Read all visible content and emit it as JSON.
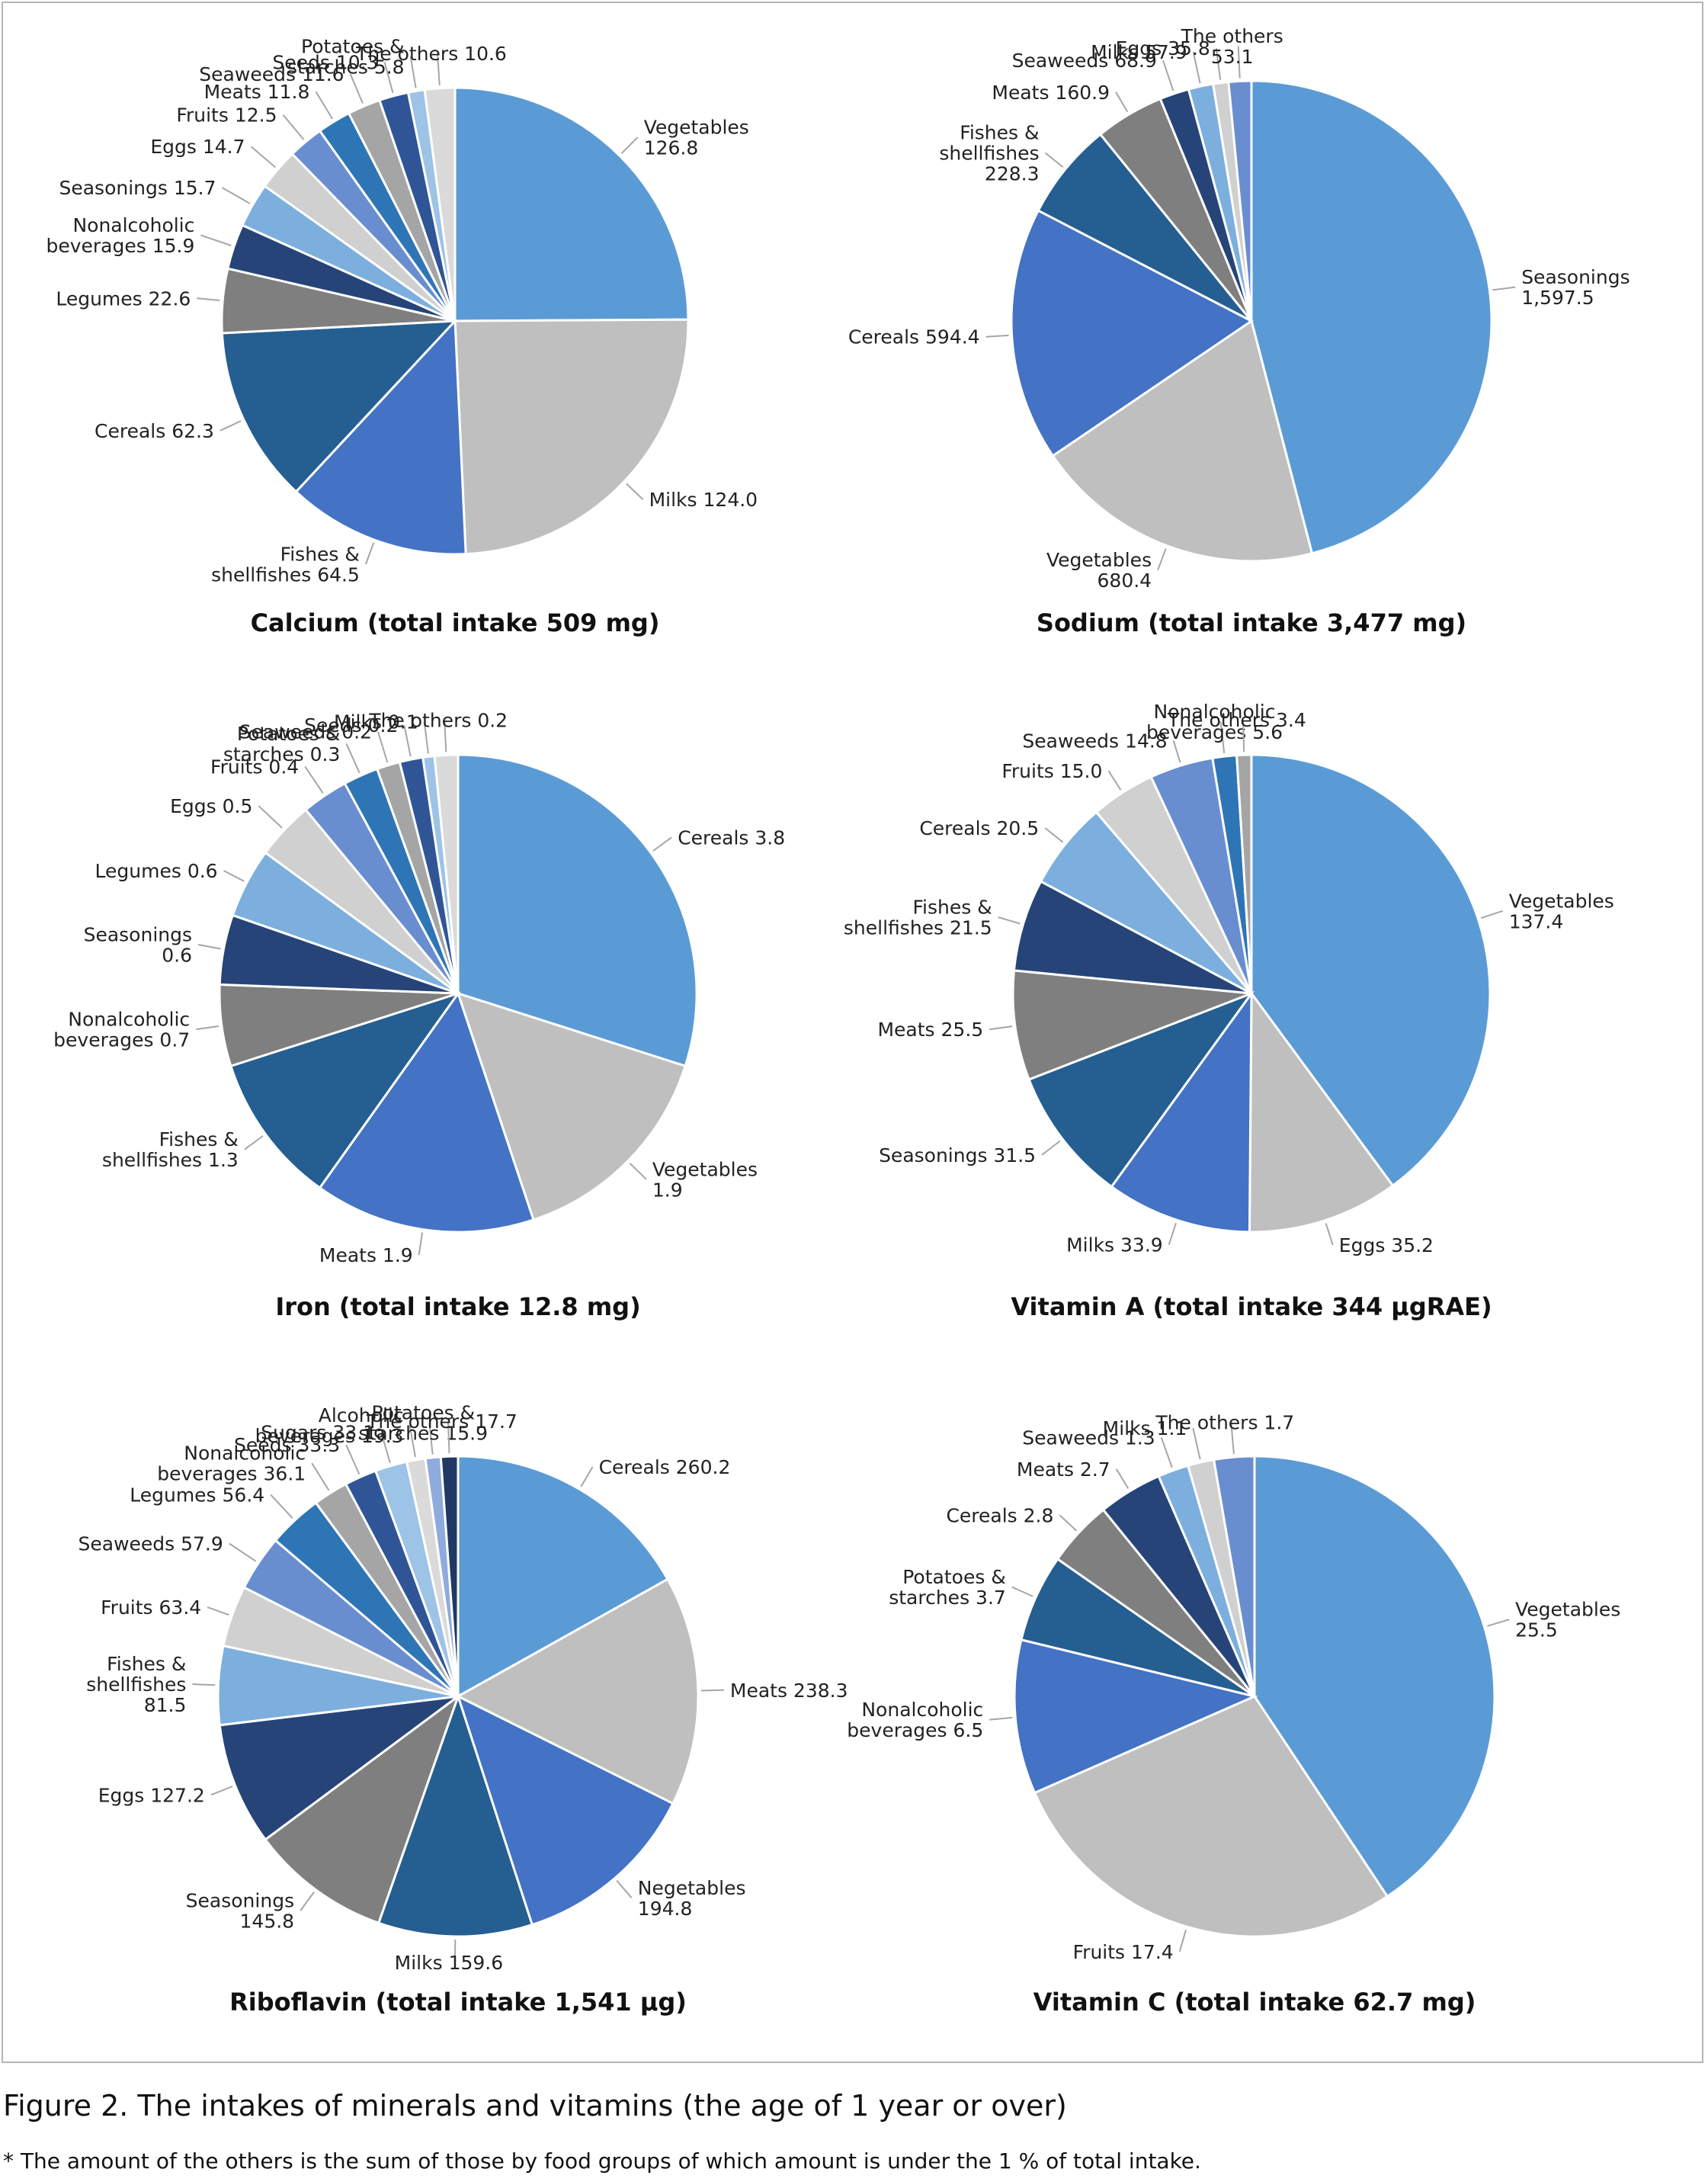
{
  "figure": {
    "caption": "Figure 2. The intakes of minerals and vitamins (the age of 1 year or over)",
    "footnote": "* The amount of the others is the sum of those by food groups of which amount is under the 1 % of total intake."
  },
  "palette": [
    "#5b9bd5",
    "#bfbfbf",
    "#4472c4",
    "#255e91",
    "#7f7f7f",
    "#264478",
    "#7cafdd",
    "#d0d0d0",
    "#698ed0",
    "#2e75b6",
    "#a5a5a5",
    "#2f5597",
    "#9dc3e6",
    "#dadada",
    "#8faadc",
    "#1f3864"
  ],
  "chart_data": [
    {
      "type": "pie",
      "title": "Calcium (total intake 509 mg)",
      "categories": [
        "Vegetables",
        "Milks",
        "Fishes & shellfishes",
        "Cereals",
        "Legumes",
        "Nonalcoholic beverages",
        "Seasonings",
        "Eggs",
        "Fruits",
        "Meats",
        "Seaweeds",
        "Seeds",
        "Potatoes & starches",
        "The others"
      ],
      "values": [
        126.8,
        124.0,
        64.5,
        62.3,
        22.6,
        15.9,
        15.7,
        14.7,
        12.5,
        11.8,
        11.6,
        10.3,
        5.8,
        10.6
      ],
      "labels": [
        [
          "Vegetables",
          "126.8"
        ],
        [
          "Milks 124.0"
        ],
        [
          "Fishes &",
          "shellfishes 64.5"
        ],
        [
          "Cereals 62.3"
        ],
        [
          "Legumes 22.6"
        ],
        [
          "Nonalcoholic",
          "beverages 15.9"
        ],
        [
          "Seasonings 15.7"
        ],
        [
          "Eggs 14.7"
        ],
        [
          "Fruits 12.5"
        ],
        [
          "Meats 11.8"
        ],
        [
          "Seaweeds 11.6"
        ],
        [
          "Seeds 10.3"
        ],
        [
          "Potatoes &",
          "starches 5.8"
        ],
        [
          "The others 10.6"
        ]
      ]
    },
    {
      "type": "pie",
      "title": "Sodium (total intake 3,477 mg)",
      "categories": [
        "Seasonings",
        "Vegetables",
        "Cereals",
        "Fishes & shellfishes",
        "Meats",
        "Seaweeds",
        "Milks",
        "Eggs",
        "The others"
      ],
      "values": [
        1597.5,
        680.4,
        594.4,
        228.3,
        160.9,
        68.9,
        57.9,
        35.8,
        53.1
      ],
      "labels": [
        [
          "Seasonings",
          "1,597.5"
        ],
        [
          "Vegetables",
          "680.4"
        ],
        [
          "Cereals 594.4"
        ],
        [
          "Fishes &",
          "shellfishes",
          "228.3"
        ],
        [
          "Meats 160.9"
        ],
        [
          "Seaweeds  68.9"
        ],
        [
          "Milks 57.9"
        ],
        [
          "Eggs 35.8"
        ],
        [
          "The others",
          "53.1"
        ]
      ]
    },
    {
      "type": "pie",
      "title": "Iron (total intake 12.8 mg)",
      "categories": [
        "Cereals",
        "Vegetables",
        "Meats",
        "Fishes & shellfishes",
        "Nonalcoholic beverages",
        "Seasonings",
        "Legumes",
        "Eggs",
        "Fruits",
        "Potatoes & starches",
        "Seaweeds",
        "Seeds",
        "Milks",
        "The others"
      ],
      "values": [
        3.8,
        1.9,
        1.9,
        1.3,
        0.7,
        0.6,
        0.6,
        0.5,
        0.4,
        0.3,
        0.2,
        0.2,
        0.1,
        0.2
      ],
      "labels": [
        [
          "Cereals 3.8"
        ],
        [
          "Vegetables",
          "1.9"
        ],
        [
          "Meats 1.9"
        ],
        [
          "Fishes &",
          "shellfishes 1.3"
        ],
        [
          "Nonalcoholic",
          "beverages 0.7"
        ],
        [
          "Seasonings",
          "0.6"
        ],
        [
          "Legumes 0.6"
        ],
        [
          "Eggs 0.5"
        ],
        [
          "Fruits 0.4"
        ],
        [
          "Potatoes &",
          "starches 0.3"
        ],
        [
          "Seaweeds 0.2"
        ],
        [
          "Seeds 0.2"
        ],
        [
          "Milks 0.1"
        ],
        [
          "The others 0.2"
        ]
      ]
    },
    {
      "type": "pie",
      "title": "Vitamin A (total intake 344 μgRAE)",
      "categories": [
        "Vegetables",
        "Eggs",
        "Milks",
        "Seasonings",
        "Meats",
        "Fishes & shellfishes",
        "Cereals",
        "Fruits",
        "Seaweeds",
        "Nonalcoholic beverages",
        "The others"
      ],
      "values": [
        137.4,
        35.2,
        33.9,
        31.5,
        25.5,
        21.5,
        20.5,
        15.0,
        14.8,
        5.6,
        3.4
      ],
      "labels": [
        [
          "Vegetables",
          "137.4"
        ],
        [
          "Eggs 35.2"
        ],
        [
          "Milks 33.9"
        ],
        [
          "Seasonings 31.5"
        ],
        [
          "Meats 25.5"
        ],
        [
          "Fishes &",
          "shellfishes 21.5"
        ],
        [
          "Cereals 20.5"
        ],
        [
          "Fruits 15.0"
        ],
        [
          "Seaweeds 14.8"
        ],
        [
          "Nonalcoholic",
          "beverages 5.6"
        ],
        [
          "The others 3.4"
        ]
      ]
    },
    {
      "type": "pie",
      "title": "Riboflavin (total intake 1,541 μg)",
      "categories": [
        "Cereals",
        "Meats",
        "Negetables",
        "Milks",
        "Seasonings",
        "Eggs",
        "Fishes & shellfishes",
        "Fruits",
        "Seaweeds",
        "Legumes",
        "Nonalcoholic beverages",
        "Seeds",
        "Sugars",
        "Alcoholic beverages",
        "Potatoes & starches",
        "The others"
      ],
      "values": [
        260.2,
        238.3,
        194.8,
        159.6,
        145.8,
        127.2,
        81.5,
        63.4,
        57.9,
        56.4,
        36.1,
        33.3,
        33.1,
        19.3,
        15.9,
        17.7
      ],
      "labels": [
        [
          "Cereals 260.2"
        ],
        [
          "Meats 238.3"
        ],
        [
          "Negetables",
          "194.8"
        ],
        [
          "Milks 159.6"
        ],
        [
          "Seasonings",
          "145.8"
        ],
        [
          "Eggs 127.2"
        ],
        [
          "Fishes &",
          "shellfishes",
          "81.5"
        ],
        [
          "Fruits 63.4"
        ],
        [
          "Seaweeds 57.9"
        ],
        [
          "Legumes 56.4"
        ],
        [
          "Nonalcoholic",
          "beverages  36.1"
        ],
        [
          "Seeds 33.3"
        ],
        [
          "Sugars 33.1"
        ],
        [
          "Alcoholic",
          "beverages 19.3"
        ],
        [
          "Potatoes &",
          "starches 15.9"
        ],
        [
          "The others  17.7"
        ]
      ]
    },
    {
      "type": "pie",
      "title": "Vitamin C (total intake 62.7 mg)",
      "categories": [
        "Vegetables",
        "Fruits",
        "Nonalcoholic beverages",
        "Potatoes & starches",
        "Cereals",
        "Meats",
        "Seaweeds",
        "Milks",
        "The others"
      ],
      "values": [
        25.5,
        17.4,
        6.5,
        3.7,
        2.8,
        2.7,
        1.3,
        1.1,
        1.7
      ],
      "labels": [
        [
          "Vegetables",
          "25.5"
        ],
        [
          "Fruits 17.4"
        ],
        [
          "Nonalcoholic",
          "beverages 6.5"
        ],
        [
          "Potatoes &",
          "starches 3.7"
        ],
        [
          "Cereals 2.8"
        ],
        [
          "Meats 2.7"
        ],
        [
          "Seaweeds 1.3"
        ],
        [
          "Milks 1.1"
        ],
        [
          "The others 1.7"
        ]
      ]
    }
  ]
}
